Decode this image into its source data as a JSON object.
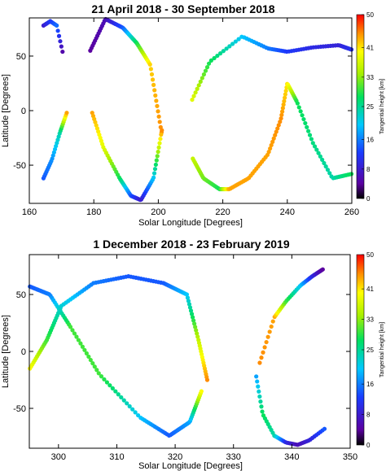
{
  "chart_data": [
    {
      "type": "scatter",
      "title": "21 April 2018 - 30 September 2018",
      "xlabel": "Solar Longitude [Degrees]",
      "ylabel": "Latitude [Degrees]",
      "xlim": [
        160,
        260
      ],
      "ylim": [
        -85,
        85
      ],
      "xticks": [
        160,
        180,
        200,
        220,
        240,
        260
      ],
      "yticks": [
        -50,
        0,
        50
      ],
      "grid": false,
      "colorbar": {
        "label": "Tangential height [km]",
        "range": [
          0,
          50
        ],
        "ticks": [
          0,
          8,
          16,
          25,
          33,
          41,
          50
        ],
        "colormap": "rainbow"
      },
      "segments": [
        {
          "x": [
            164.4,
            166.5,
            168.5,
            170.3
          ],
          "y": [
            78,
            82,
            78,
            54
          ],
          "h": [
            8,
            12,
            15,
            5
          ]
        },
        {
          "x": [
            164.4,
            167.0,
            169.5,
            171.6
          ],
          "y": [
            -62,
            -45,
            -20,
            -2
          ],
          "h": [
            14,
            17,
            24,
            44
          ]
        },
        {
          "x": [
            178.9,
            183.6,
            189.0,
            193.3,
            197.5,
            201.0
          ],
          "y": [
            55,
            84,
            76,
            62,
            42,
            -20
          ],
          "h": [
            4,
            6,
            14,
            28,
            42,
            45
          ]
        },
        {
          "x": [
            179.5,
            183.0,
            188.0,
            191.5,
            194.6,
            198.5,
            201.1
          ],
          "y": [
            -2,
            -34,
            -62,
            -78,
            -82,
            -62,
            -18
          ],
          "h": [
            44,
            38,
            28,
            14,
            8,
            20,
            45
          ]
        },
        {
          "x": [
            210.5,
            216.0,
            226.0,
            234.0,
            240.0,
            248.0,
            256.0,
            259.9
          ],
          "y": [
            10,
            45,
            68,
            57,
            54,
            58,
            60,
            56
          ],
          "h": [
            38,
            28,
            20,
            16,
            12,
            10,
            9,
            11
          ]
        },
        {
          "x": [
            210.7,
            214.0,
            219.0,
            222.0,
            228.0,
            234.0,
            238.0,
            240.0,
            243.0,
            248.0,
            254.0,
            259.9
          ],
          "y": [
            -44,
            -62,
            -72,
            -72,
            -62,
            -40,
            -8,
            25,
            8,
            -30,
            -62,
            -58
          ],
          "h": [
            36,
            32,
            28,
            44,
            44,
            44,
            45,
            41,
            28,
            26,
            24,
            28
          ]
        }
      ]
    },
    {
      "type": "scatter",
      "title": "1 December 2018 - 23 February 2019",
      "xlabel": "Solar Longitude [Degrees]",
      "ylabel": "Latitude [Degrees]",
      "xlim": [
        295,
        350
      ],
      "ylim": [
        -85,
        85
      ],
      "xticks": [
        300,
        310,
        320,
        330,
        340,
        350
      ],
      "yticks": [
        -50,
        0,
        50
      ],
      "grid": false,
      "colorbar": {
        "label": "Tangential height [km]",
        "range": [
          0,
          50
        ],
        "ticks": [
          0,
          8,
          16,
          25,
          33,
          41,
          50
        ],
        "colormap": "rainbow"
      },
      "segments": [
        {
          "x": [
            295.1,
            298.0,
            300.5,
            306.0,
            312.0,
            318.0,
            322.0,
            324.0,
            325.5
          ],
          "y": [
            -15,
            10,
            40,
            60,
            66,
            60,
            50,
            10,
            -25
          ],
          "h": [
            40,
            30,
            22,
            16,
            14,
            14,
            20,
            36,
            45
          ]
        },
        {
          "x": [
            295.1,
            298.5,
            302.0,
            307.0,
            314.0,
            319.0,
            322.5,
            324.5
          ],
          "y": [
            57,
            50,
            22,
            -20,
            -58,
            -74,
            -62,
            -35
          ],
          "h": [
            14,
            16,
            30,
            30,
            20,
            14,
            18,
            40
          ]
        },
        {
          "x": [
            334.5,
            337.0,
            339.0,
            341.5,
            343.5,
            345.3
          ],
          "y": [
            -10,
            30,
            44,
            58,
            66,
            72
          ],
          "h": [
            45,
            44,
            30,
            20,
            10,
            4
          ]
        },
        {
          "x": [
            333.9,
            335.0,
            337.0,
            339.0,
            341.0,
            343.0,
            345.6
          ],
          "y": [
            -22,
            -55,
            -74,
            -80,
            -82,
            -78,
            -68
          ],
          "h": [
            18,
            28,
            24,
            10,
            6,
            9,
            14
          ]
        }
      ]
    }
  ]
}
